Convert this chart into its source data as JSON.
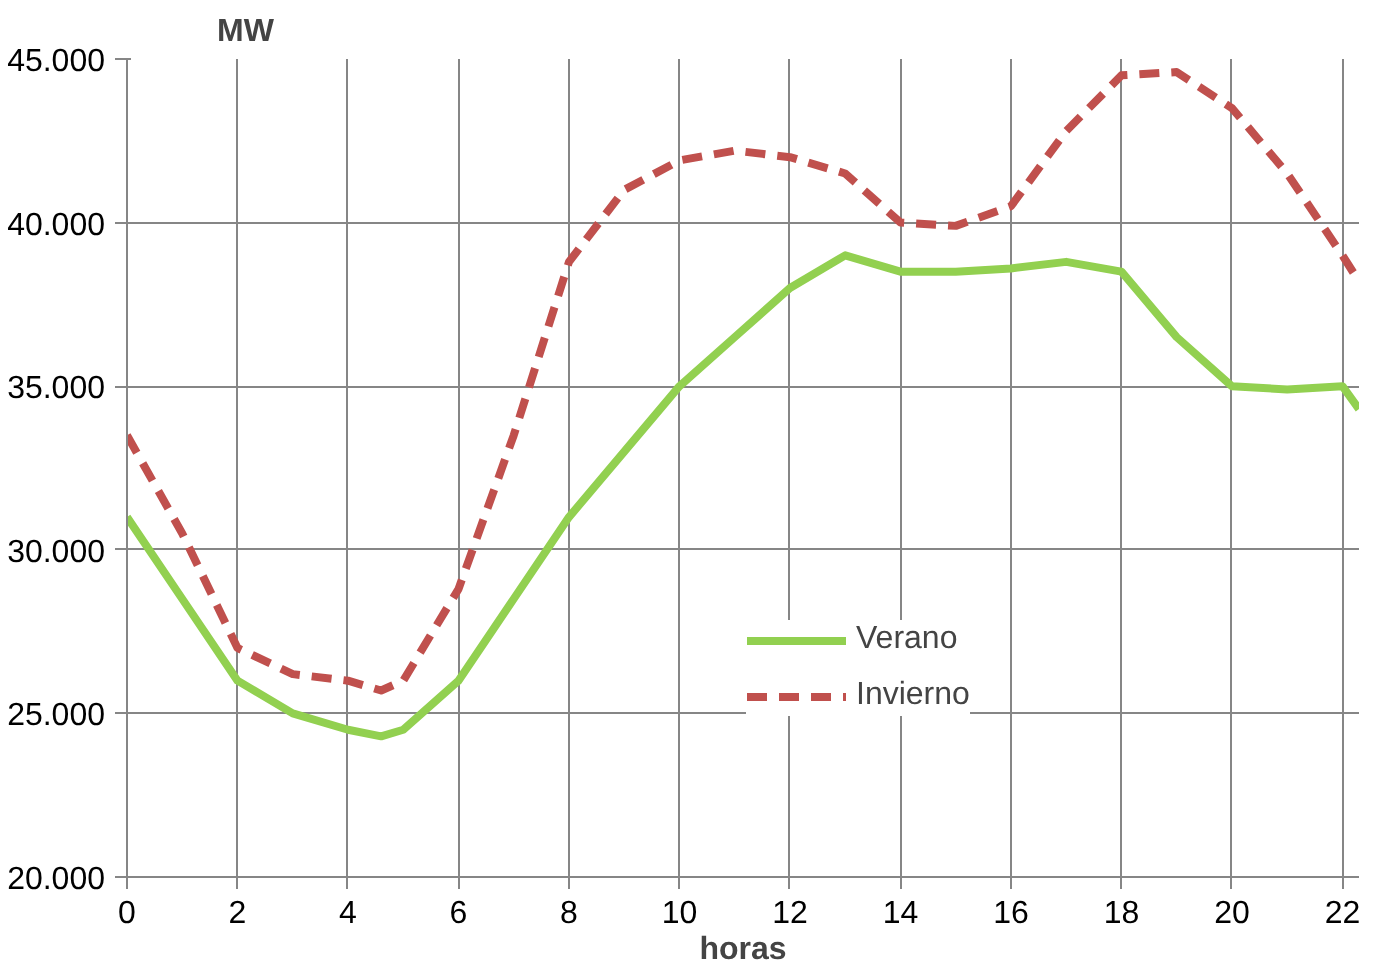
{
  "chart_data": {
    "type": "line",
    "xlabel": "horas",
    "ylabel": "MW",
    "x": [
      0,
      1,
      2,
      3,
      4,
      4.6,
      5,
      6,
      7,
      8,
      9,
      10,
      11,
      12,
      13,
      14,
      15,
      16,
      17,
      18,
      19,
      20,
      21,
      22,
      22.3
    ],
    "series": [
      {
        "name": "Verano",
        "color": "#92d050",
        "line_style": "solid",
        "values": [
          31000,
          28500,
          26000,
          25000,
          24500,
          24300,
          24500,
          26000,
          28500,
          31000,
          33000,
          35000,
          36500,
          38000,
          39000,
          38500,
          38500,
          38600,
          38800,
          38500,
          36500,
          35000,
          34900,
          35000,
          34300
        ]
      },
      {
        "name": "Invierno",
        "color": "#c0504d",
        "line_style": "dashed",
        "values": [
          33500,
          30500,
          27000,
          26200,
          26000,
          25700,
          26000,
          28800,
          33500,
          38800,
          41000,
          41900,
          42200,
          42000,
          41500,
          40000,
          39900,
          40500,
          42800,
          44500,
          44600,
          43500,
          41500,
          39000,
          38200
        ]
      }
    ],
    "xlim": [
      0,
      22.3
    ],
    "xticks": [
      0,
      2,
      4,
      6,
      8,
      10,
      12,
      14,
      16,
      18,
      20,
      22
    ],
    "ylim": [
      20000,
      45000
    ],
    "yticks": [
      {
        "value": 20000,
        "label": "20.000"
      },
      {
        "value": 25000,
        "label": "25.000"
      },
      {
        "value": 30000,
        "label": "30.000"
      },
      {
        "value": 35000,
        "label": "35.000"
      },
      {
        "value": 40000,
        "label": "40.000"
      },
      {
        "value": 45000,
        "label": "45.000"
      }
    ],
    "grid": true,
    "legend": "right",
    "marker": "none"
  }
}
